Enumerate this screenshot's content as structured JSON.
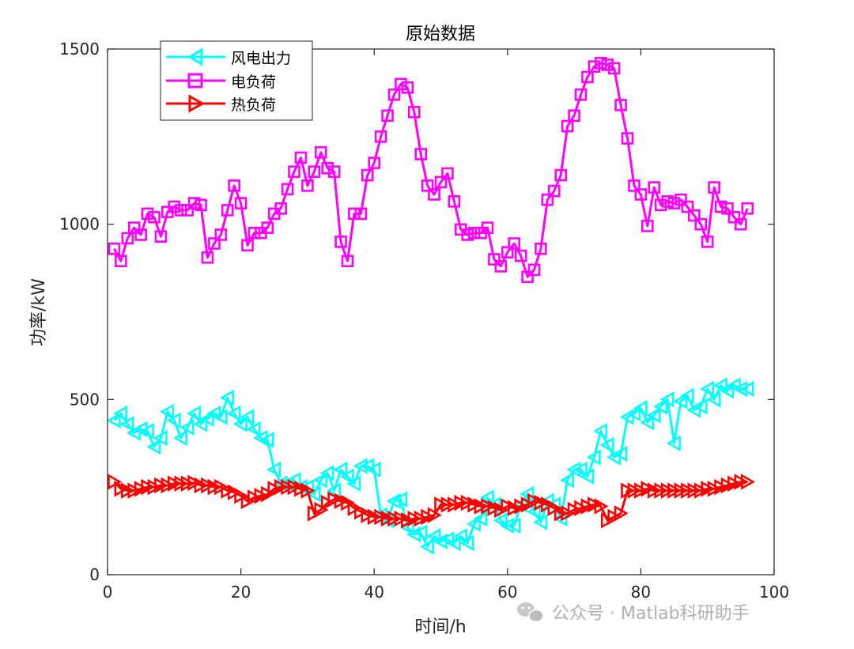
{
  "chart_data": {
    "type": "line",
    "title": "原始数据",
    "xlabel": "时间/h",
    "ylabel": "功率/kW",
    "xlim": [
      0,
      100
    ],
    "ylim": [
      0,
      1500
    ],
    "xticks": [
      0,
      20,
      40,
      60,
      80,
      100
    ],
    "yticks": [
      0,
      500,
      1000,
      1500
    ],
    "xtick_labels": [
      "0",
      "20",
      "40",
      "60",
      "80",
      "100"
    ],
    "ytick_labels": [
      "0",
      "500",
      "1000",
      "1500"
    ],
    "grid": false,
    "legend_position": "top-left",
    "x": [
      1,
      2,
      3,
      4,
      5,
      6,
      7,
      8,
      9,
      10,
      11,
      12,
      13,
      14,
      15,
      16,
      17,
      18,
      19,
      20,
      21,
      22,
      23,
      24,
      25,
      26,
      27,
      28,
      29,
      30,
      31,
      32,
      33,
      34,
      35,
      36,
      37,
      38,
      39,
      40,
      41,
      42,
      43,
      44,
      45,
      46,
      47,
      48,
      49,
      50,
      51,
      52,
      53,
      54,
      55,
      56,
      57,
      58,
      59,
      60,
      61,
      62,
      63,
      64,
      65,
      66,
      67,
      68,
      69,
      70,
      71,
      72,
      73,
      74,
      75,
      76,
      77,
      78,
      79,
      80,
      81,
      82,
      83,
      84,
      85,
      86,
      87,
      88,
      89,
      90,
      91,
      92,
      93,
      94,
      95,
      96
    ],
    "series": [
      {
        "name": "风电出力",
        "color": "#00ffff",
        "marker": "triangle-left",
        "values": [
          440,
          460,
          430,
          405,
          415,
          410,
          365,
          390,
          465,
          440,
          390,
          420,
          460,
          430,
          445,
          460,
          450,
          505,
          460,
          430,
          450,
          415,
          390,
          385,
          300,
          260,
          260,
          270,
          250,
          250,
          230,
          270,
          290,
          240,
          300,
          280,
          260,
          310,
          310,
          300,
          170,
          155,
          210,
          215,
          135,
          115,
          120,
          80,
          110,
          95,
          100,
          90,
          110,
          90,
          145,
          160,
          220,
          200,
          155,
          140,
          140,
          200,
          230,
          180,
          150,
          210,
          200,
          160,
          270,
          300,
          300,
          280,
          335,
          410,
          370,
          335,
          345,
          450,
          460,
          475,
          435,
          455,
          480,
          500,
          375,
          495,
          510,
          470,
          480,
          530,
          500,
          540,
          525,
          540,
          530,
          530
        ]
      },
      {
        "name": "电负荷",
        "color": "#ff00ff",
        "marker": "square",
        "values": [
          930,
          895,
          960,
          990,
          970,
          1030,
          1020,
          965,
          1035,
          1050,
          1040,
          1040,
          1060,
          1055,
          905,
          945,
          970,
          1040,
          1110,
          1060,
          940,
          975,
          975,
          990,
          1030,
          1045,
          1100,
          1150,
          1190,
          1110,
          1150,
          1205,
          1160,
          1150,
          950,
          895,
          1030,
          1030,
          1140,
          1175,
          1250,
          1310,
          1370,
          1400,
          1390,
          1320,
          1200,
          1110,
          1085,
          1120,
          1145,
          1065,
          985,
          970,
          975,
          975,
          990,
          900,
          880,
          920,
          945,
          910,
          850,
          870,
          930,
          1070,
          1095,
          1140,
          1280,
          1310,
          1370,
          1420,
          1450,
          1460,
          1455,
          1445,
          1340,
          1245,
          1110,
          1085,
          995,
          1105,
          1055,
          1065,
          1060,
          1070,
          1050,
          1025,
          1000,
          950,
          1105,
          1050,
          1045,
          1020,
          1000,
          1045
        ]
      },
      {
        "name": "热负荷",
        "color": "#ff0000",
        "marker": "triangle-right",
        "values": [
          265,
          245,
          240,
          240,
          245,
          250,
          250,
          255,
          255,
          260,
          260,
          260,
          262,
          255,
          255,
          250,
          250,
          240,
          235,
          225,
          210,
          220,
          225,
          230,
          245,
          250,
          250,
          250,
          245,
          240,
          175,
          185,
          205,
          215,
          210,
          205,
          190,
          180,
          170,
          165,
          165,
          160,
          160,
          160,
          155,
          160,
          160,
          165,
          170,
          200,
          200,
          200,
          205,
          205,
          200,
          195,
          195,
          190,
          185,
          195,
          190,
          195,
          200,
          210,
          205,
          200,
          190,
          175,
          175,
          185,
          190,
          195,
          200,
          195,
          155,
          165,
          175,
          240,
          240,
          240,
          245,
          240,
          240,
          240,
          240,
          240,
          240,
          240,
          240,
          245,
          245,
          250,
          255,
          260,
          265,
          265
        ]
      }
    ]
  },
  "watermark": {
    "text": "公众号 · Matlab科研助手",
    "icon": "wechat-icon"
  }
}
